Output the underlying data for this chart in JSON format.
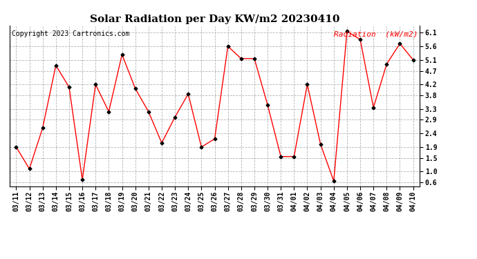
{
  "title": "Solar Radiation per Day KW/m2 20230410",
  "copyright": "Copyright 2023 Cartronics.com",
  "legend_label": "Radiation  (kW/m2)",
  "dates": [
    "03/11",
    "03/12",
    "03/13",
    "03/14",
    "03/15",
    "03/16",
    "03/17",
    "03/18",
    "03/19",
    "03/20",
    "03/21",
    "03/22",
    "03/23",
    "03/24",
    "03/25",
    "03/26",
    "03/27",
    "03/28",
    "03/29",
    "03/30",
    "03/31",
    "04/01",
    "04/02",
    "04/03",
    "04/04",
    "04/05",
    "04/06",
    "04/07",
    "04/08",
    "04/09",
    "04/10"
  ],
  "values": [
    1.9,
    1.1,
    2.6,
    4.9,
    4.1,
    0.7,
    4.2,
    3.2,
    5.3,
    4.05,
    3.2,
    2.05,
    3.0,
    3.85,
    1.9,
    2.2,
    5.6,
    5.15,
    5.15,
    3.45,
    1.55,
    1.55,
    4.2,
    2.0,
    0.65,
    6.15,
    5.85,
    3.35,
    4.95,
    5.7,
    5.1
  ],
  "yticks": [
    0.6,
    1.0,
    1.5,
    1.9,
    2.4,
    2.9,
    3.3,
    3.8,
    4.2,
    4.7,
    5.1,
    5.6,
    6.1
  ],
  "ylim": [
    0.45,
    6.35
  ],
  "line_color": "red",
  "marker": "D",
  "marker_color": "black",
  "marker_size": 2.5,
  "background_color": "#ffffff",
  "grid_color": "#aaaaaa",
  "title_fontsize": 11,
  "copyright_fontsize": 7,
  "legend_fontsize": 8,
  "tick_fontsize": 7,
  "legend_color": "red"
}
